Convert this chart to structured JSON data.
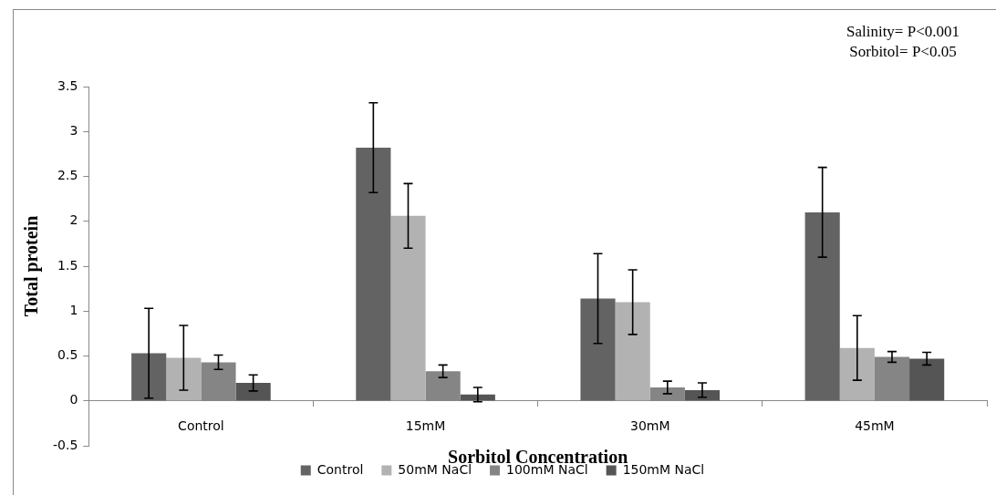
{
  "chart_data": {
    "type": "bar",
    "xlabel": "Sorbitol Concentration",
    "ylabel": "Total protein",
    "categories": [
      "Control",
      "15mM",
      "30mM",
      "45mM"
    ],
    "series": [
      {
        "name": "Control",
        "color": "#636363",
        "values": [
          0.53,
          2.82,
          1.14,
          2.1
        ],
        "errors": [
          0.5,
          0.5,
          0.5,
          0.5
        ]
      },
      {
        "name": "50mM NaCl",
        "color": "#b2b2b2",
        "values": [
          0.48,
          2.06,
          1.1,
          0.59
        ],
        "errors": [
          0.36,
          0.36,
          0.36,
          0.36
        ]
      },
      {
        "name": "100mM NaCl",
        "color": "#858585",
        "values": [
          0.43,
          0.33,
          0.15,
          0.49
        ],
        "errors": [
          0.08,
          0.07,
          0.07,
          0.06
        ]
      },
      {
        "name": "150mM NaCl",
        "color": "#555555",
        "values": [
          0.2,
          0.07,
          0.12,
          0.47
        ],
        "errors": [
          0.09,
          0.08,
          0.08,
          0.07
        ]
      }
    ],
    "ylim": [
      -0.5,
      3.5
    ],
    "yticks": [
      -0.5,
      0,
      0.5,
      1,
      1.5,
      2,
      2.5,
      3,
      3.5
    ],
    "legend": "bottom",
    "annotations": [
      "Salinity= P<0.001",
      "Sorbitol= P<0.05"
    ]
  }
}
